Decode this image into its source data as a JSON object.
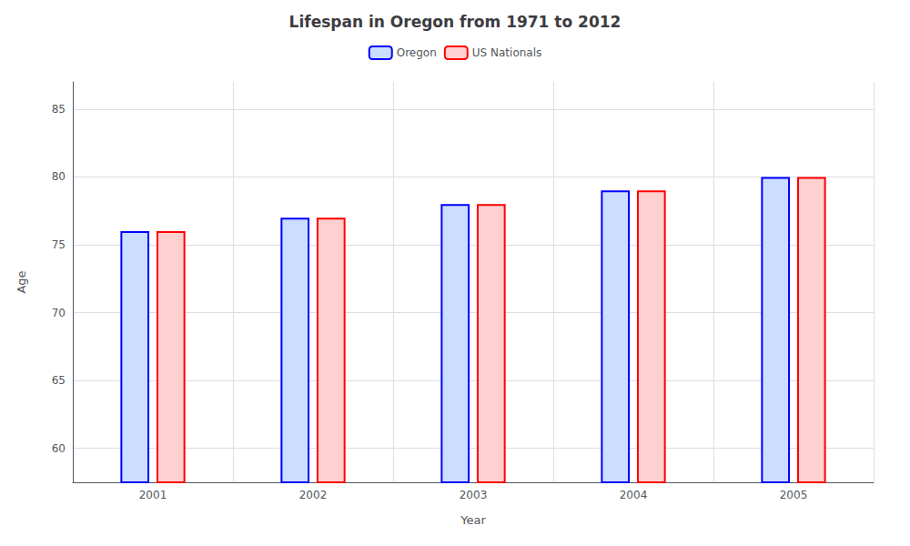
{
  "chart_data": {
    "type": "bar",
    "title": "Lifespan in Oregon from 1971 to 2012",
    "x_label": "Year",
    "y_label": "Age",
    "categories": [
      "2001",
      "2002",
      "2003",
      "2004",
      "2005"
    ],
    "series": [
      {
        "name": "Oregon",
        "color": "#ccdeff",
        "values": [
          76,
          77,
          78,
          79,
          80
        ]
      },
      {
        "name": "US Nationals",
        "color": "#ffd0d0",
        "values": [
          76,
          77,
          78,
          79,
          80
        ]
      }
    ],
    "ylim": [
      57.5,
      87
    ],
    "yticks": [
      60,
      65,
      70,
      75,
      80,
      85
    ],
    "grid": true,
    "legend": "top"
  }
}
